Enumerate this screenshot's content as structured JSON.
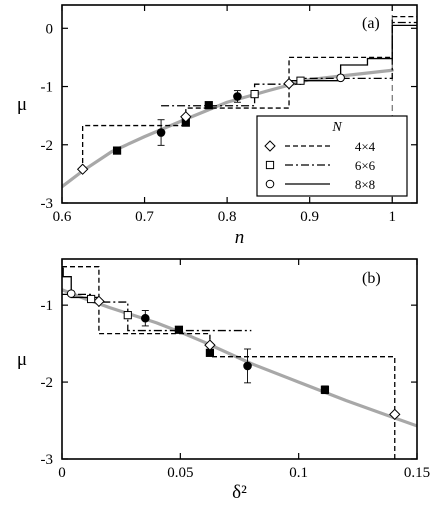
{
  "chart_data": [
    {
      "type": "line",
      "panel_label": "(a)",
      "xlabel": "n",
      "ylabel": "μ",
      "xlim": [
        0.6,
        1.03
      ],
      "ylim": [
        -3,
        0.4
      ],
      "xticks": [
        0.6,
        0.7,
        0.8,
        0.9,
        1
      ],
      "xtick_labels": [
        "0.6",
        "0.7",
        "0.8",
        "0.9",
        "1"
      ],
      "yticks": [
        0,
        -1,
        -2,
        -3
      ],
      "ytick_labels": [
        "0",
        "-1",
        "-2",
        "-3"
      ],
      "grid": false,
      "legend": {
        "title": "N",
        "placement": "bottom-right",
        "entries": [
          {
            "marker": "diamond",
            "line": "dashed",
            "label": "4×4"
          },
          {
            "marker": "square",
            "line": "dashdot",
            "label": "6×6"
          },
          {
            "marker": "circle",
            "line": "solid",
            "label": "8×8"
          }
        ]
      },
      "fit_curve": {
        "color": "#a8a8a8",
        "points": [
          [
            0.6,
            -2.72
          ],
          [
            0.625,
            -2.45
          ],
          [
            0.66,
            -2.12
          ],
          [
            0.7,
            -1.86
          ],
          [
            0.75,
            -1.56
          ],
          [
            0.8,
            -1.27
          ],
          [
            0.85,
            -1.07
          ],
          [
            0.9,
            -0.88
          ],
          [
            0.95,
            -0.8
          ],
          [
            1.0,
            -0.72
          ]
        ]
      },
      "step_lines": [
        {
          "name": "4×4",
          "style": "dashed",
          "points": [
            [
              0.625,
              -2.45
            ],
            [
              0.625,
              -1.67
            ],
            [
              0.75,
              -1.67
            ],
            [
              0.75,
              -1.37
            ],
            [
              0.875,
              -1.37
            ],
            [
              0.875,
              -0.5
            ],
            [
              1.0,
              -0.5
            ],
            [
              1.0,
              0.2
            ],
            [
              1.03,
              0.2
            ]
          ]
        },
        {
          "name": "6×6",
          "style": "dashdot",
          "points": [
            [
              0.72,
              -1.33
            ],
            [
              0.8333,
              -1.33
            ],
            [
              0.8333,
              -0.96
            ],
            [
              0.8889,
              -0.96
            ],
            [
              0.8889,
              -0.86
            ],
            [
              1.0,
              -0.86
            ],
            [
              1.0,
              0.1
            ],
            [
              1.03,
              0.1
            ]
          ]
        },
        {
          "name": "8×8",
          "style": "solid",
          "points": [
            [
              0.875,
              -0.97
            ],
            [
              0.875,
              -0.9
            ],
            [
              0.9375,
              -0.9
            ],
            [
              0.9375,
              -0.63
            ],
            [
              0.97,
              -0.63
            ],
            [
              0.97,
              -0.52
            ],
            [
              1.0,
              -0.52
            ],
            [
              1.0,
              0.05
            ],
            [
              1.03,
              0.05
            ]
          ]
        }
      ],
      "points_open": [
        {
          "marker": "diamond",
          "x": 0.625,
          "y": -2.42
        },
        {
          "marker": "diamond",
          "x": 0.75,
          "y": -1.52
        },
        {
          "marker": "diamond",
          "x": 0.875,
          "y": -0.95
        },
        {
          "marker": "square",
          "x": 0.8333,
          "y": -1.13
        },
        {
          "marker": "square",
          "x": 0.8889,
          "y": -0.9
        },
        {
          "marker": "circle",
          "x": 0.9375,
          "y": -0.85
        }
      ],
      "points_filled": [
        {
          "marker": "square",
          "x": 0.6667,
          "y": -2.1,
          "err": 0.05
        },
        {
          "marker": "circle",
          "x": 0.72,
          "y": -1.79,
          "err": 0.22
        },
        {
          "marker": "square",
          "x": 0.75,
          "y": -1.62,
          "err": 0.04
        },
        {
          "marker": "square",
          "x": 0.7778,
          "y": -1.32,
          "err": 0.04
        },
        {
          "marker": "circle",
          "x": 0.8125,
          "y": -1.17,
          "err": 0.1
        }
      ],
      "vertical_dashed_line": {
        "x": 1.0
      }
    },
    {
      "type": "line",
      "panel_label": "(b)",
      "xlabel": "δ²",
      "ylabel": "μ",
      "xlim": [
        0,
        0.15
      ],
      "ylim": [
        -3,
        -0.4
      ],
      "xticks": [
        0,
        0.05,
        0.1,
        0.15
      ],
      "xtick_labels": [
        "0",
        "0.05",
        "0.1",
        "0.15"
      ],
      "yticks": [
        -1,
        -2,
        -3
      ],
      "ytick_labels": [
        "-1",
        "-2",
        "-3"
      ],
      "grid": false,
      "fit_curve": {
        "color": "#a8a8a8",
        "points": [
          [
            0,
            -0.8
          ],
          [
            0.005,
            -0.86
          ],
          [
            0.01,
            -0.92
          ],
          [
            0.02,
            -1.03
          ],
          [
            0.03,
            -1.13
          ],
          [
            0.04,
            -1.23
          ],
          [
            0.05,
            -1.35
          ],
          [
            0.06,
            -1.48
          ],
          [
            0.08,
            -1.76
          ],
          [
            0.1,
            -2.0
          ],
          [
            0.12,
            -2.24
          ],
          [
            0.14,
            -2.46
          ],
          [
            0.15,
            -2.57
          ]
        ]
      },
      "step_lines": [
        {
          "name": "4×4",
          "style": "dashed",
          "points": [
            [
              0,
              -0.5
            ],
            [
              0.0156,
              -0.5
            ],
            [
              0.0156,
              -1.37
            ],
            [
              0.0625,
              -1.37
            ],
            [
              0.0625,
              -1.67
            ],
            [
              0.1406,
              -1.67
            ],
            [
              0.1406,
              -3.0
            ]
          ]
        },
        {
          "name": "6×6",
          "style": "dashdot",
          "points": [
            [
              0,
              -0.86
            ],
            [
              0.0123,
              -0.86
            ],
            [
              0.0123,
              -0.96
            ],
            [
              0.0278,
              -0.96
            ],
            [
              0.0278,
              -1.33
            ],
            [
              0.08,
              -1.33
            ]
          ]
        },
        {
          "name": "8×8",
          "style": "solid",
          "points": [
            [
              0,
              -0.52
            ],
            [
              0.0005,
              -0.52
            ],
            [
              0.0005,
              -0.63
            ],
            [
              0.0039,
              -0.63
            ],
            [
              0.0039,
              -0.9
            ],
            [
              0.0156,
              -0.9
            ],
            [
              0.0156,
              -0.97
            ]
          ]
        }
      ],
      "points_open": [
        {
          "marker": "diamond",
          "x": 0.0156,
          "y": -0.95
        },
        {
          "marker": "diamond",
          "x": 0.0625,
          "y": -1.52
        },
        {
          "marker": "diamond",
          "x": 0.1406,
          "y": -2.42
        },
        {
          "marker": "square",
          "x": 0.0123,
          "y": -0.92
        },
        {
          "marker": "square",
          "x": 0.0278,
          "y": -1.13
        },
        {
          "marker": "circle",
          "x": 0.0039,
          "y": -0.85
        }
      ],
      "points_filled": [
        {
          "marker": "square",
          "x": 0.1111,
          "y": -2.1,
          "err": 0.05
        },
        {
          "marker": "circle",
          "x": 0.0784,
          "y": -1.79,
          "err": 0.22
        },
        {
          "marker": "square",
          "x": 0.0625,
          "y": -1.62,
          "err": 0.04
        },
        {
          "marker": "square",
          "x": 0.0494,
          "y": -1.32,
          "err": 0.04
        },
        {
          "marker": "circle",
          "x": 0.0352,
          "y": -1.17,
          "err": 0.1
        }
      ]
    }
  ]
}
